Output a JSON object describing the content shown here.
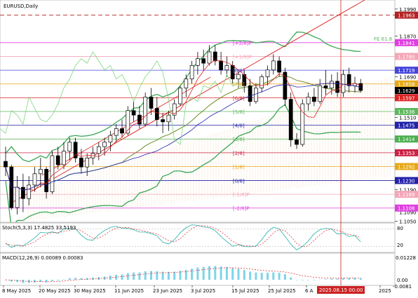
{
  "header": {
    "title": "EURUSD,Daily"
  },
  "price_axis": {
    "ticks": [
      "1.1990",
      "1.1870",
      "1.1690",
      "1.1510",
      "1.1350",
      "1.1190",
      "1.1050"
    ],
    "ticks_small": [
      "1.1090"
    ],
    "labels": [
      {
        "text": "1.1963",
        "color": "#b22222"
      },
      {
        "text": "1.1841",
        "color": "#e040e0"
      },
      {
        "text": "1.1780",
        "color": "#f4a6b6"
      },
      {
        "text": "1.1719",
        "color": "#4444dd"
      },
      {
        "text": "1.1658",
        "color": "#e6a817"
      },
      {
        "text": "1.1629",
        "color": "#000000"
      },
      {
        "text": "1.1597",
        "color": "#dd2222"
      },
      {
        "text": "1.1536",
        "color": "#5cb85c"
      },
      {
        "text": "1.1475",
        "color": "#2222aa"
      },
      {
        "text": "1.1414",
        "color": "#4caf50"
      },
      {
        "text": "1.1353",
        "color": "#cc2244"
      },
      {
        "text": "1.1292",
        "color": "#e6a817"
      },
      {
        "text": "1.1230",
        "color": "#2222aa"
      },
      {
        "text": "1.1169",
        "color": "#f4a6b6"
      },
      {
        "text": "1.1108",
        "color": "#e040e0"
      }
    ],
    "fe_label": "FE 61.8"
  },
  "murrey": [
    "[+2/8]P",
    "[+1/8]P",
    "[8/8]",
    "[7/8]",
    "[6/8]",
    "[5/8]",
    "[4/8]",
    "[3/8]",
    "[2/8]",
    "[1/8]",
    "[0/8]",
    "[-1/8]P",
    "[-2/8]P"
  ],
  "stoch": {
    "label": "Stoch(5,3,3) 17.4825 33.5193",
    "levels": [
      "80",
      "20"
    ]
  },
  "macd": {
    "label": "MACD(12,26,9) 0.00089 0.00083",
    "ticks": [
      "0.01228",
      "0.00",
      "-0.0081"
    ]
  },
  "time_axis": {
    "labels": [
      "8 May 2025",
      "20 May 2025",
      "30 May 2025",
      "11 Jun 2025",
      "23 Jun 2025",
      "3 Jul 2025",
      "15 Jul 2025",
      "25 Jul 2025",
      "6 A",
      "2025"
    ],
    "cursor_label": "2025.08.15 00:00"
  },
  "chart_data": {
    "type": "candlestick",
    "instrument": "EURUSD",
    "timeframe": "Daily",
    "price_range": [
      1.1045,
      1.203
    ],
    "candles": [
      [
        1.1315,
        1.138,
        1.125,
        1.129
      ],
      [
        1.129,
        1.13,
        1.11,
        1.111
      ],
      [
        1.111,
        1.125,
        1.108,
        1.12
      ],
      [
        1.12,
        1.126,
        1.109,
        1.115
      ],
      [
        1.115,
        1.125,
        1.112,
        1.121
      ],
      [
        1.121,
        1.129,
        1.118,
        1.126
      ],
      [
        1.126,
        1.133,
        1.12,
        1.128
      ],
      [
        1.128,
        1.129,
        1.115,
        1.118
      ],
      [
        1.118,
        1.136,
        1.117,
        1.134
      ],
      [
        1.134,
        1.138,
        1.128,
        1.13
      ],
      [
        1.13,
        1.14,
        1.128,
        1.136
      ],
      [
        1.136,
        1.142,
        1.132,
        1.14
      ],
      [
        1.14,
        1.142,
        1.131,
        1.133
      ],
      [
        1.133,
        1.137,
        1.126,
        1.129
      ],
      [
        1.129,
        1.135,
        1.125,
        1.133
      ],
      [
        1.133,
        1.138,
        1.13,
        1.135
      ],
      [
        1.135,
        1.14,
        1.132,
        1.138
      ],
      [
        1.138,
        1.142,
        1.134,
        1.14
      ],
      [
        1.14,
        1.145,
        1.136,
        1.143
      ],
      [
        1.143,
        1.148,
        1.14,
        1.146
      ],
      [
        1.146,
        1.15,
        1.142,
        1.144
      ],
      [
        1.144,
        1.156,
        1.143,
        1.154
      ],
      [
        1.154,
        1.158,
        1.149,
        1.152
      ],
      [
        1.152,
        1.156,
        1.146,
        1.148
      ],
      [
        1.148,
        1.162,
        1.147,
        1.16
      ],
      [
        1.16,
        1.164,
        1.152,
        1.155
      ],
      [
        1.155,
        1.16,
        1.147,
        1.15
      ],
      [
        1.15,
        1.153,
        1.144,
        1.149
      ],
      [
        1.149,
        1.154,
        1.145,
        1.152
      ],
      [
        1.152,
        1.159,
        1.15,
        1.157
      ],
      [
        1.157,
        1.165,
        1.156,
        1.164
      ],
      [
        1.164,
        1.17,
        1.16,
        1.168
      ],
      [
        1.168,
        1.176,
        1.166,
        1.174
      ],
      [
        1.174,
        1.18,
        1.17,
        1.177
      ],
      [
        1.177,
        1.181,
        1.172,
        1.175
      ],
      [
        1.175,
        1.183,
        1.174,
        1.18
      ],
      [
        1.18,
        1.183,
        1.174,
        1.176
      ],
      [
        1.176,
        1.18,
        1.17,
        1.172
      ],
      [
        1.172,
        1.178,
        1.169,
        1.174
      ],
      [
        1.174,
        1.176,
        1.166,
        1.168
      ],
      [
        1.168,
        1.172,
        1.164,
        1.17
      ],
      [
        1.17,
        1.172,
        1.162,
        1.165
      ],
      [
        1.165,
        1.168,
        1.156,
        1.158
      ],
      [
        1.158,
        1.166,
        1.157,
        1.164
      ],
      [
        1.164,
        1.17,
        1.162,
        1.169
      ],
      [
        1.169,
        1.174,
        1.165,
        1.172
      ],
      [
        1.172,
        1.179,
        1.17,
        1.176
      ],
      [
        1.176,
        1.178,
        1.169,
        1.171
      ],
      [
        1.171,
        1.173,
        1.156,
        1.159
      ],
      [
        1.159,
        1.162,
        1.138,
        1.141
      ],
      [
        1.141,
        1.144,
        1.137,
        1.139
      ],
      [
        1.139,
        1.159,
        1.138,
        1.157
      ],
      [
        1.157,
        1.162,
        1.154,
        1.16
      ],
      [
        1.16,
        1.164,
        1.156,
        1.158
      ],
      [
        1.158,
        1.168,
        1.157,
        1.165
      ],
      [
        1.165,
        1.172,
        1.161,
        1.164
      ],
      [
        1.164,
        1.17,
        1.161,
        1.167
      ],
      [
        1.167,
        1.171,
        1.16,
        1.162
      ],
      [
        1.162,
        1.172,
        1.16,
        1.17
      ],
      [
        1.17,
        1.173,
        1.162,
        1.165
      ],
      [
        1.165,
        1.169,
        1.162,
        1.166
      ],
      [
        1.166,
        1.168,
        1.162,
        1.1629
      ]
    ],
    "horizontal_levels": [
      1.1963,
      1.1841,
      1.178,
      1.1719,
      1.1658,
      1.1597,
      1.1536,
      1.1475,
      1.1414,
      1.1353,
      1.1292,
      1.123,
      1.1169,
      1.1108
    ],
    "cursor_time": "2025.08.15 00:00"
  }
}
